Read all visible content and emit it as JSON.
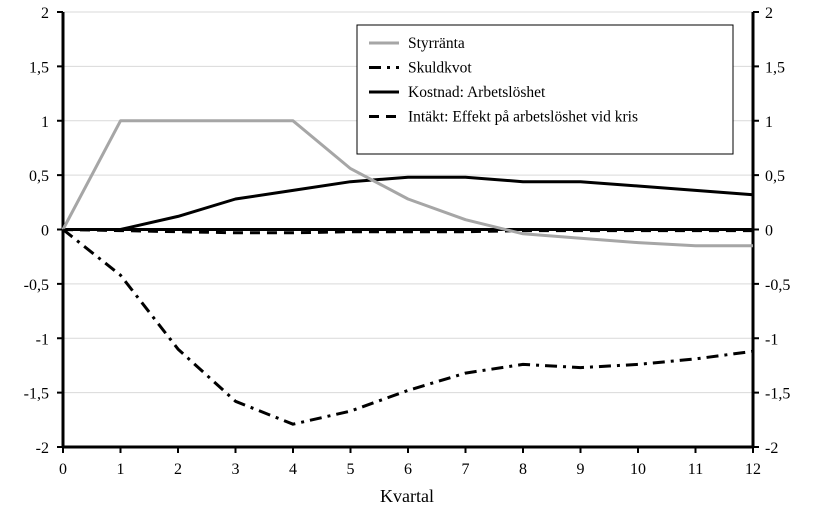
{
  "chart_data": {
    "type": "line",
    "title": "",
    "xlabel": "Kvartal",
    "ylabel": "",
    "x": [
      0,
      1,
      2,
      3,
      4,
      5,
      6,
      7,
      8,
      9,
      10,
      11,
      12
    ],
    "xlim": [
      0,
      12
    ],
    "ylim": [
      -2,
      2
    ],
    "y_ticks": [
      2,
      1.5,
      1,
      0.5,
      0,
      -0.5,
      -1,
      -1.5,
      -2
    ],
    "y_tick_labels": [
      "2",
      "1,5",
      "1",
      "0,5",
      "0",
      "-0,5",
      "-1",
      "-1,5",
      "-2"
    ],
    "x_tick_labels": [
      "0",
      "1",
      "2",
      "3",
      "4",
      "5",
      "6",
      "7",
      "8",
      "9",
      "10",
      "11",
      "12"
    ],
    "secondary_y_axis": true,
    "grid": "horizontal",
    "legend_position": "top-right",
    "series": [
      {
        "name": "Styrränta",
        "color": "#a6a6a6",
        "line_style": "solid",
        "values": [
          0,
          1,
          1,
          1,
          1,
          0.56,
          0.28,
          0.09,
          -0.04,
          -0.08,
          -0.12,
          -0.15,
          -0.15
        ]
      },
      {
        "name": "Skuldkvot",
        "color": "#000000",
        "line_style": "dash-dot",
        "values": [
          0,
          -0.42,
          -1.1,
          -1.58,
          -1.79,
          -1.67,
          -1.48,
          -1.32,
          -1.24,
          -1.27,
          -1.24,
          -1.19,
          -1.12
        ]
      },
      {
        "name": "Kostnad: Arbetslöshet",
        "color": "#000000",
        "line_style": "solid",
        "values": [
          0,
          0,
          0.12,
          0.28,
          0.36,
          0.44,
          0.48,
          0.48,
          0.44,
          0.44,
          0.4,
          0.36,
          0.32
        ]
      },
      {
        "name": "Intäkt: Effekt på arbetslöshet vid kris",
        "color": "#000000",
        "line_style": "dashed",
        "values": [
          0,
          -0.01,
          -0.02,
          -0.03,
          -0.03,
          -0.02,
          -0.02,
          -0.02,
          -0.01,
          -0.01,
          -0.01,
          -0.01,
          -0.01
        ]
      }
    ]
  }
}
